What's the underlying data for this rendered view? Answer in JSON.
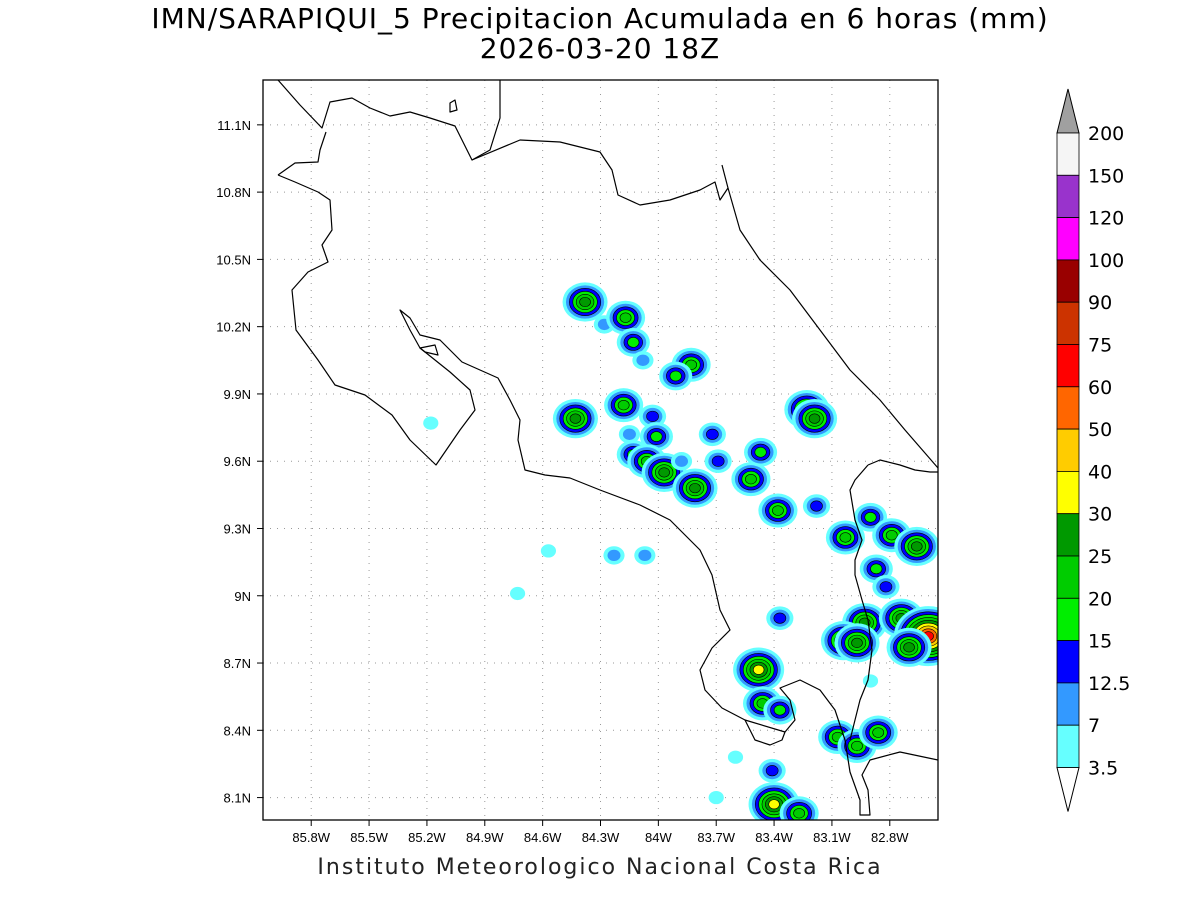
{
  "title": {
    "line1": "IMN/SARAPIQUI_5 Precipitacion Acumulada en 6 horas (mm)",
    "line2": "2026-03-20 18Z"
  },
  "footer": "Instituto Meteorologico Nacional Costa Rica",
  "map": {
    "lon_range": [
      -86.05,
      -82.55
    ],
    "lat_range": [
      8.0,
      11.3
    ],
    "lon_ticks": [
      {
        "value": -85.8,
        "label": "85.8W"
      },
      {
        "value": -85.5,
        "label": "85.5W"
      },
      {
        "value": -85.2,
        "label": "85.2W"
      },
      {
        "value": -84.9,
        "label": "84.9W"
      },
      {
        "value": -84.6,
        "label": "84.6W"
      },
      {
        "value": -84.3,
        "label": "84.3W"
      },
      {
        "value": -84.0,
        "label": "84W"
      },
      {
        "value": -83.7,
        "label": "83.7W"
      },
      {
        "value": -83.4,
        "label": "83.4W"
      },
      {
        "value": -83.1,
        "label": "83.1W"
      },
      {
        "value": -82.8,
        "label": "82.8W"
      }
    ],
    "lat_ticks": [
      {
        "value": 11.1,
        "label": "11.1N"
      },
      {
        "value": 10.8,
        "label": "10.8N"
      },
      {
        "value": 10.5,
        "label": "10.5N"
      },
      {
        "value": 10.2,
        "label": "10.2N"
      },
      {
        "value": 9.9,
        "label": "9.9N"
      },
      {
        "value": 9.6,
        "label": "9.6N"
      },
      {
        "value": 9.3,
        "label": "9.3N"
      },
      {
        "value": 9.0,
        "label": "9N"
      },
      {
        "value": 8.7,
        "label": "8.7N"
      },
      {
        "value": 8.4,
        "label": "8.4N"
      },
      {
        "value": 8.1,
        "label": "8.1N"
      }
    ],
    "grid": true
  },
  "colorbar": {
    "levels": [
      "3.5",
      "7",
      "12.5",
      "15",
      "20",
      "25",
      "30",
      "40",
      "50",
      "60",
      "75",
      "90",
      "100",
      "120",
      "150",
      "200"
    ],
    "colors": [
      "#ffffff",
      "#66ffff",
      "#3399ff",
      "#0000ff",
      "#00ee00",
      "#00cc00",
      "#009900",
      "#ffff00",
      "#ffcc00",
      "#ff6600",
      "#ff0000",
      "#cc3300",
      "#990000",
      "#ff00ff",
      "#9933cc",
      "#f5f5f5",
      "#a0a0a0"
    ]
  },
  "precip_cells": [
    {
      "lon": -84.38,
      "lat": 10.31,
      "max": 25
    },
    {
      "lon": -84.28,
      "lat": 10.21,
      "max": 7
    },
    {
      "lon": -84.17,
      "lat": 10.24,
      "max": 20
    },
    {
      "lon": -84.13,
      "lat": 10.13,
      "max": 15
    },
    {
      "lon": -84.08,
      "lat": 10.05,
      "max": 7
    },
    {
      "lon": -83.83,
      "lat": 10.03,
      "max": 20
    },
    {
      "lon": -83.91,
      "lat": 9.98,
      "max": 15
    },
    {
      "lon": -84.43,
      "lat": 9.79,
      "max": 25
    },
    {
      "lon": -84.18,
      "lat": 9.85,
      "max": 20
    },
    {
      "lon": -84.03,
      "lat": 9.8,
      "max": 12.5
    },
    {
      "lon": -84.01,
      "lat": 9.71,
      "max": 15
    },
    {
      "lon": -84.15,
      "lat": 9.72,
      "max": 7
    },
    {
      "lon": -84.13,
      "lat": 9.63,
      "max": 15
    },
    {
      "lon": -84.06,
      "lat": 9.6,
      "max": 20
    },
    {
      "lon": -83.97,
      "lat": 9.55,
      "max": 25
    },
    {
      "lon": -83.88,
      "lat": 9.6,
      "max": 7
    },
    {
      "lon": -83.81,
      "lat": 9.48,
      "max": 25
    },
    {
      "lon": -83.72,
      "lat": 9.72,
      "max": 12.5
    },
    {
      "lon": -83.69,
      "lat": 9.6,
      "max": 12.5
    },
    {
      "lon": -83.52,
      "lat": 9.52,
      "max": 20
    },
    {
      "lon": -83.47,
      "lat": 9.64,
      "max": 15
    },
    {
      "lon": -83.38,
      "lat": 9.38,
      "max": 20
    },
    {
      "lon": -83.23,
      "lat": 9.83,
      "max": 25
    },
    {
      "lon": -83.19,
      "lat": 9.79,
      "max": 25
    },
    {
      "lon": -83.18,
      "lat": 9.4,
      "max": 12.5
    },
    {
      "lon": -83.03,
      "lat": 9.26,
      "max": 20
    },
    {
      "lon": -82.9,
      "lat": 9.35,
      "max": 15
    },
    {
      "lon": -82.79,
      "lat": 9.27,
      "max": 20
    },
    {
      "lon": -82.66,
      "lat": 9.22,
      "max": 25
    },
    {
      "lon": -82.87,
      "lat": 9.12,
      "max": 15
    },
    {
      "lon": -82.82,
      "lat": 9.04,
      "max": 12.5
    },
    {
      "lon": -82.93,
      "lat": 8.88,
      "max": 25
    },
    {
      "lon": -82.74,
      "lat": 8.9,
      "max": 25
    },
    {
      "lon": -82.6,
      "lat": 8.82,
      "max": 60
    },
    {
      "lon": -82.7,
      "lat": 8.77,
      "max": 25
    },
    {
      "lon": -83.04,
      "lat": 8.8,
      "max": 25
    },
    {
      "lon": -82.97,
      "lat": 8.79,
      "max": 25
    },
    {
      "lon": -83.37,
      "lat": 8.9,
      "max": 12.5
    },
    {
      "lon": -83.48,
      "lat": 8.67,
      "max": 30
    },
    {
      "lon": -83.46,
      "lat": 8.52,
      "max": 20
    },
    {
      "lon": -83.37,
      "lat": 8.49,
      "max": 15
    },
    {
      "lon": -83.07,
      "lat": 8.37,
      "max": 20
    },
    {
      "lon": -82.97,
      "lat": 8.33,
      "max": 20
    },
    {
      "lon": -82.86,
      "lat": 8.39,
      "max": 20
    },
    {
      "lon": -83.41,
      "lat": 8.22,
      "max": 12.5
    },
    {
      "lon": -83.4,
      "lat": 8.07,
      "max": 30
    },
    {
      "lon": -83.27,
      "lat": 8.03,
      "max": 20
    },
    {
      "lon": -84.23,
      "lat": 9.18,
      "max": 7
    },
    {
      "lon": -84.07,
      "lat": 9.18,
      "max": 7
    },
    {
      "lon": -84.57,
      "lat": 9.2,
      "max": 3.5
    },
    {
      "lon": -84.73,
      "lat": 9.01,
      "max": 3.5
    },
    {
      "lon": -85.18,
      "lat": 9.77,
      "max": 3.5
    },
    {
      "lon": -83.6,
      "lat": 8.28,
      "max": 3.5
    },
    {
      "lon": -83.7,
      "lat": 8.1,
      "max": 3.5
    },
    {
      "lon": -82.9,
      "lat": 8.62,
      "max": 3.5
    }
  ]
}
